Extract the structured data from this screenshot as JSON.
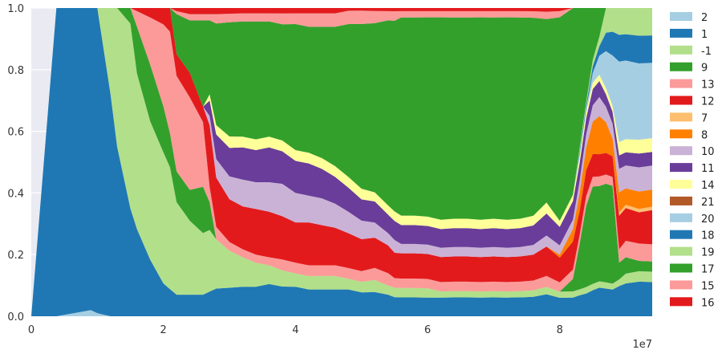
{
  "chart_data": {
    "type": "area",
    "stacked": true,
    "normalized": true,
    "x_offset_label": "1e7",
    "xlim": [
      0,
      94000000
    ],
    "ylim": [
      0,
      1.0
    ],
    "x_ticks": [
      0,
      20000000,
      40000000,
      60000000,
      80000000
    ],
    "x_tick_labels": [
      "0",
      "2",
      "4",
      "6",
      "8"
    ],
    "y_ticks": [
      0.0,
      0.2,
      0.4,
      0.6,
      0.8,
      1.0
    ],
    "y_tick_labels": [
      "0.0",
      "0.2",
      "0.4",
      "0.6",
      "0.8",
      "1.0"
    ],
    "grid": true,
    "legend_position": "right",
    "x": [
      0,
      3800000,
      9000000,
      10000000,
      12000000,
      13000000,
      15000000,
      16000000,
      18000000,
      20000000,
      21000000,
      22000000,
      24000000,
      26000000,
      27000000,
      28000000,
      30000000,
      32000000,
      34000000,
      36000000,
      38000000,
      40000000,
      42000000,
      44000000,
      46000000,
      48000000,
      50000000,
      52000000,
      54000000,
      55000000,
      56000000,
      58000000,
      60000000,
      62000000,
      64000000,
      66000000,
      68000000,
      70000000,
      72000000,
      74000000,
      76000000,
      78000000,
      80000000,
      82000000,
      83000000,
      84000000,
      85000000,
      86000000,
      87000000,
      88000000,
      89000000,
      90000000,
      92000000,
      94000000
    ],
    "series": [
      {
        "name": "2",
        "color": "#a6cee3",
        "values": [
          0,
          0,
          0.02,
          0.01,
          0,
          0,
          0,
          0,
          0,
          0,
          0,
          0,
          0,
          0,
          0,
          0,
          0,
          0,
          0,
          0,
          0,
          0,
          0,
          0,
          0,
          0,
          0,
          0,
          0,
          0,
          0,
          0,
          0,
          0,
          0,
          0,
          0,
          0,
          0,
          0,
          0,
          0,
          0,
          0,
          0,
          0,
          0,
          0,
          0,
          0,
          0,
          0,
          0,
          0
        ]
      },
      {
        "name": "1",
        "color": "#1f78b4",
        "values": [
          0,
          1,
          0.98,
          0.99,
          0.72,
          0.55,
          0.35,
          0.28,
          0.18,
          0.1,
          0.08,
          0.07,
          0.07,
          0.07,
          0.08,
          0.09,
          0.1,
          0.11,
          0.11,
          0.12,
          0.11,
          0.11,
          0.1,
          0.1,
          0.1,
          0.1,
          0.09,
          0.08,
          0.07,
          0.06,
          0.06,
          0.06,
          0.06,
          0.06,
          0.06,
          0.06,
          0.06,
          0.06,
          0.06,
          0.06,
          0.06,
          0.06,
          0.06,
          0.06,
          0.07,
          0.07,
          0.08,
          0.09,
          0.09,
          0.09,
          0.09,
          0.1,
          0.1,
          0.1
        ]
      },
      {
        "name": "-1",
        "color": "#b2df8a",
        "values": [
          0,
          0,
          0,
          0,
          0.28,
          0.45,
          0.6,
          0.5,
          0.44,
          0.4,
          0.36,
          0.3,
          0.24,
          0.2,
          0.2,
          0.16,
          0.13,
          0.11,
          0.09,
          0.07,
          0.06,
          0.05,
          0.05,
          0.05,
          0.05,
          0.04,
          0.04,
          0.04,
          0.03,
          0.03,
          0.03,
          0.03,
          0.03,
          0.02,
          0.02,
          0.02,
          0.02,
          0.02,
          0.02,
          0.02,
          0.02,
          0.02,
          0.02,
          0.02,
          0.02,
          0.02,
          0.02,
          0.02,
          0.02,
          0.02,
          0.02,
          0.03,
          0.03,
          0.03
        ]
      },
      {
        "name": "9",
        "color": "#33a02c",
        "values": [
          0,
          0,
          0,
          0,
          0,
          0,
          0.05,
          0.15,
          0.18,
          0.14,
          0.1,
          0.1,
          0.1,
          0.15,
          0.09,
          0,
          0,
          0,
          0,
          0,
          0,
          0,
          0,
          0,
          0,
          0,
          0,
          0,
          0,
          0,
          0,
          0,
          0,
          0,
          0,
          0,
          0,
          0,
          0,
          0,
          0,
          0,
          0,
          0.04,
          0.15,
          0.25,
          0.3,
          0.3,
          0.32,
          0.33,
          0.05,
          0.05,
          0.03,
          0.03
        ]
      },
      {
        "name": "13",
        "color": "#fb9a99",
        "values": [
          0,
          0,
          0,
          0,
          0,
          0,
          0,
          0.05,
          0.15,
          0.25,
          0.3,
          0.31,
          0.3,
          0.21,
          0.05,
          0.04,
          0.03,
          0.03,
          0.03,
          0.03,
          0.04,
          0.04,
          0.04,
          0.04,
          0.04,
          0.04,
          0.04,
          0.04,
          0.04,
          0.03,
          0.03,
          0.03,
          0.03,
          0.03,
          0.03,
          0.03,
          0.03,
          0.03,
          0.03,
          0.03,
          0.03,
          0.03,
          0.03,
          0.03,
          0.03,
          0.03,
          0.03,
          0.03,
          0.03,
          0.03,
          0.04,
          0.05,
          0.05,
          0.05
        ]
      },
      {
        "name": "12",
        "color": "#e31a1c",
        "values": [
          0,
          0,
          0,
          0,
          0,
          0,
          0,
          0.01,
          0.03,
          0.05,
          0.07,
          0.07,
          0.08,
          0.05,
          0.2,
          0.16,
          0.15,
          0.16,
          0.17,
          0.17,
          0.16,
          0.15,
          0.16,
          0.15,
          0.14,
          0.13,
          0.12,
          0.1,
          0.09,
          0.08,
          0.08,
          0.08,
          0.08,
          0.08,
          0.08,
          0.08,
          0.08,
          0.08,
          0.08,
          0.08,
          0.08,
          0.08,
          0.08,
          0.09,
          0.08,
          0.08,
          0.07,
          0.07,
          0.07,
          0.07,
          0.1,
          0.1,
          0.09,
          0.1
        ]
      },
      {
        "name": "7",
        "color": "#fdbf6f",
        "values": [
          0,
          0,
          0,
          0,
          0,
          0,
          0,
          0,
          0,
          0,
          0,
          0,
          0,
          0,
          0,
          0,
          0,
          0,
          0,
          0,
          0,
          0,
          0,
          0,
          0,
          0,
          0,
          0,
          0,
          0,
          0,
          0,
          0,
          0,
          0,
          0,
          0,
          0,
          0,
          0,
          0,
          0,
          0,
          0,
          0,
          0,
          0,
          0,
          0,
          0,
          0.01,
          0.01,
          0.01,
          0.01
        ]
      },
      {
        "name": "8",
        "color": "#ff7f00",
        "values": [
          0,
          0,
          0,
          0,
          0,
          0,
          0,
          0,
          0,
          0,
          0,
          0,
          0,
          0,
          0,
          0,
          0,
          0,
          0,
          0,
          0,
          0,
          0,
          0,
          0,
          0,
          0,
          0,
          0,
          0,
          0,
          0,
          0,
          0,
          0,
          0,
          0,
          0,
          0,
          0,
          0,
          0,
          0.01,
          0.04,
          0.06,
          0.07,
          0.1,
          0.12,
          0.1,
          0.06,
          0.06,
          0.05,
          0.05,
          0.05
        ]
      },
      {
        "name": "10",
        "color": "#cab2d6",
        "values": [
          0,
          0,
          0,
          0,
          0,
          0,
          0,
          0,
          0,
          0,
          0,
          0,
          0,
          0,
          0.03,
          0.06,
          0.08,
          0.1,
          0.1,
          0.11,
          0.12,
          0.11,
          0.1,
          0.1,
          0.09,
          0.08,
          0.07,
          0.05,
          0.04,
          0.04,
          0.03,
          0.03,
          0.03,
          0.03,
          0.03,
          0.03,
          0.03,
          0.03,
          0.03,
          0.03,
          0.03,
          0.03,
          0.03,
          0.03,
          0.04,
          0.04,
          0.05,
          0.06,
          0.05,
          0.05,
          0.07,
          0.07,
          0.07,
          0.07
        ]
      },
      {
        "name": "11",
        "color": "#6a3d9a",
        "values": [
          0,
          0,
          0,
          0,
          0,
          0,
          0,
          0,
          0,
          0,
          0,
          0,
          0,
          0,
          0.05,
          0.08,
          0.1,
          0.12,
          0.12,
          0.13,
          0.12,
          0.12,
          0.12,
          0.11,
          0.1,
          0.09,
          0.08,
          0.07,
          0.06,
          0.06,
          0.06,
          0.06,
          0.06,
          0.06,
          0.06,
          0.06,
          0.06,
          0.06,
          0.06,
          0.06,
          0.06,
          0.06,
          0.06,
          0.06,
          0.06,
          0.05,
          0.05,
          0.05,
          0.04,
          0.04,
          0.04,
          0.04,
          0.04,
          0.04
        ]
      },
      {
        "name": "14",
        "color": "#ffff99",
        "values": [
          0,
          0,
          0,
          0,
          0,
          0,
          0,
          0,
          0,
          0,
          0,
          0,
          0,
          0,
          0.02,
          0.03,
          0.04,
          0.04,
          0.04,
          0.04,
          0.04,
          0.04,
          0.04,
          0.04,
          0.04,
          0.04,
          0.04,
          0.03,
          0.03,
          0.03,
          0.03,
          0.03,
          0.03,
          0.03,
          0.03,
          0.03,
          0.03,
          0.03,
          0.03,
          0.03,
          0.03,
          0.03,
          0.02,
          0.02,
          0.02,
          0.02,
          0.02,
          0.02,
          0.02,
          0.02,
          0.04,
          0.04,
          0.04,
          0.04
        ]
      },
      {
        "name": "21",
        "color": "#b15928",
        "values": [
          0,
          0,
          0,
          0,
          0,
          0,
          0,
          0,
          0,
          0,
          0,
          0,
          0,
          0,
          0,
          0,
          0,
          0,
          0,
          0,
          0,
          0,
          0,
          0,
          0,
          0,
          0,
          0,
          0,
          0,
          0,
          0,
          0,
          0,
          0,
          0,
          0,
          0,
          0,
          0,
          0,
          0,
          0,
          0,
          0,
          0,
          0,
          0,
          0,
          0,
          0,
          0,
          0,
          0
        ]
      },
      {
        "name": "20",
        "color": "#a6cee3",
        "values": [
          0,
          0,
          0,
          0,
          0,
          0,
          0,
          0,
          0,
          0,
          0,
          0,
          0,
          0,
          0,
          0,
          0,
          0,
          0,
          0,
          0,
          0,
          0,
          0,
          0,
          0,
          0,
          0,
          0,
          0,
          0,
          0,
          0,
          0,
          0,
          0,
          0,
          0,
          0,
          0,
          0,
          0,
          0,
          0,
          0.01,
          0.01,
          0.03,
          0.06,
          0.12,
          0.17,
          0.24,
          0.24,
          0.22,
          0.22
        ]
      },
      {
        "name": "18",
        "color": "#1f78b4",
        "values": [
          0,
          0,
          0,
          0,
          0,
          0,
          0,
          0,
          0,
          0,
          0,
          0,
          0,
          0,
          0,
          0,
          0,
          0,
          0,
          0,
          0,
          0,
          0,
          0,
          0,
          0,
          0,
          0,
          0,
          0,
          0,
          0,
          0,
          0,
          0,
          0,
          0,
          0,
          0,
          0,
          0,
          0,
          0,
          0,
          0.01,
          0.01,
          0.02,
          0.03,
          0.06,
          0.08,
          0.08,
          0.08,
          0.08,
          0.08
        ]
      },
      {
        "name": "19",
        "color": "#b2df8a",
        "values": [
          0,
          0,
          0,
          0,
          0,
          0,
          0,
          0,
          0,
          0,
          0,
          0,
          0,
          0,
          0,
          0,
          0,
          0,
          0,
          0,
          0,
          0,
          0,
          0,
          0,
          0,
          0,
          0,
          0,
          0,
          0,
          0,
          0,
          0,
          0,
          0,
          0,
          0,
          0,
          0,
          0,
          0,
          0,
          0,
          0.01,
          0.01,
          0.02,
          0.03,
          0.08,
          0.08,
          0.08,
          0.08,
          0.08,
          0.08
        ]
      },
      {
        "name": "17",
        "color": "#33a02c",
        "values": [
          0,
          0,
          0,
          0,
          0,
          0,
          0,
          0,
          0,
          0,
          0,
          0.13,
          0.17,
          0.28,
          0.24,
          0.33,
          0.4,
          0.43,
          0.44,
          0.43,
          0.43,
          0.47,
          0.47,
          0.49,
          0.52,
          0.57,
          0.62,
          0.56,
          0.6,
          0.6,
          0.63,
          0.63,
          0.64,
          0.65,
          0.64,
          0.64,
          0.65,
          0.64,
          0.65,
          0.64,
          0.61,
          0.5,
          0.66,
          0.6,
          0.47,
          0.29,
          0.16,
          0.09,
          0,
          0,
          0,
          0,
          0,
          0
        ]
      },
      {
        "name": "15",
        "color": "#fb9a99",
        "values": [
          0,
          0,
          0,
          0,
          0,
          0,
          0,
          0,
          0,
          0,
          0,
          0.01,
          0.02,
          0.02,
          0.02,
          0.03,
          0.03,
          0.03,
          0.03,
          0.03,
          0.04,
          0.04,
          0.05,
          0.05,
          0.05,
          0.05,
          0.05,
          0.04,
          0.03,
          0.03,
          0.02,
          0.02,
          0.02,
          0.02,
          0.02,
          0.02,
          0.02,
          0.02,
          0.02,
          0.02,
          0.02,
          0.02,
          0.02,
          0,
          0,
          0,
          0,
          0,
          0,
          0,
          0,
          0,
          0,
          0
        ]
      },
      {
        "name": "16",
        "color": "#e31a1c",
        "values": [
          0,
          0,
          0,
          0,
          0,
          0,
          0,
          0,
          0,
          0,
          0,
          0.01,
          0.02,
          0.02,
          0.02,
          0.02,
          0.02,
          0.02,
          0.02,
          0.02,
          0.02,
          0.02,
          0.02,
          0.02,
          0.02,
          0.01,
          0.01,
          0.01,
          0.01,
          0.01,
          0.01,
          0.01,
          0.01,
          0.01,
          0.01,
          0.01,
          0.01,
          0.01,
          0.01,
          0.01,
          0.01,
          0.01,
          0.01,
          0,
          0,
          0,
          0,
          0,
          0,
          0,
          0,
          0,
          0,
          0
        ]
      }
    ]
  }
}
